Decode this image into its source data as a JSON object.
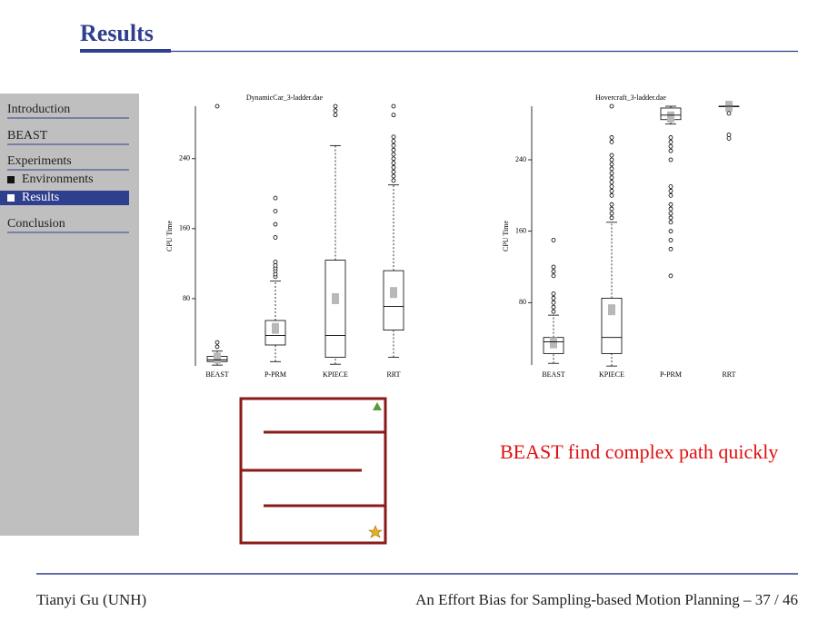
{
  "header": {
    "title": "Results"
  },
  "nav": {
    "items": [
      "Introduction",
      "BEAST",
      "Experiments",
      "Environments",
      "Results",
      "Conclusion"
    ]
  },
  "chart_data": [
    {
      "type": "box",
      "title": "DynamicCar_3-ladder.dae",
      "ylabel": "CPU Time",
      "categories": [
        "BEAST",
        "P-PRM",
        "KPIECE",
        "RRT"
      ],
      "ylim": [
        0,
        300
      ],
      "yticks": [
        80,
        160,
        240
      ],
      "boxes": [
        {
          "low": 4,
          "q1": 8,
          "median": 10,
          "q3": 14,
          "high": 20,
          "mean": 12,
          "outliers": [
            25,
            30,
            300
          ]
        },
        {
          "low": 8,
          "q1": 27,
          "median": 38,
          "q3": 55,
          "high": 100,
          "mean": 46,
          "outliers": [
            105,
            108,
            112,
            115,
            118,
            122,
            150,
            165,
            180,
            195
          ]
        },
        {
          "low": 5,
          "q1": 13,
          "median": 38,
          "q3": 124,
          "high": 255,
          "mean": 80,
          "outliers": [
            290,
            295,
            300
          ]
        },
        {
          "low": 13,
          "q1": 44,
          "median": 71,
          "q3": 112,
          "high": 210,
          "mean": 87,
          "outliers": [
            215,
            220,
            225,
            230,
            235,
            240,
            245,
            250,
            255,
            260,
            265,
            290,
            300
          ]
        }
      ]
    },
    {
      "type": "box",
      "title": "Hovercraft_3-ladder.dae",
      "ylabel": "CPU Time",
      "categories": [
        "BEAST",
        "KPIECE",
        "P-PRM",
        "RRT"
      ],
      "ylim": [
        0,
        300
      ],
      "yticks": [
        80,
        160,
        240
      ],
      "boxes": [
        {
          "low": 12,
          "q1": 23,
          "median": 36,
          "q3": 41,
          "high": 66,
          "mean": 35,
          "outliers": [
            70,
            75,
            80,
            85,
            90,
            110,
            115,
            120,
            150
          ]
        },
        {
          "low": 9,
          "q1": 23,
          "median": 41,
          "q3": 85,
          "high": 170,
          "mean": 72,
          "outliers": [
            175,
            180,
            185,
            190,
            200,
            205,
            210,
            215,
            220,
            225,
            230,
            235,
            240,
            245,
            260,
            265,
            300
          ]
        },
        {
          "low": 280,
          "q1": 285,
          "median": 290,
          "q3": 298,
          "high": 300,
          "mean": 288,
          "outliers": [
            110,
            140,
            150,
            160,
            170,
            175,
            180,
            185,
            190,
            200,
            205,
            210,
            240,
            250,
            255,
            260,
            265
          ]
        },
        {
          "low": 300,
          "q1": 300,
          "median": 300,
          "q3": 300,
          "high": 300,
          "mean": 300,
          "outliers": [
            264,
            268,
            292
          ]
        }
      ]
    }
  ],
  "caption": "BEAST find complex path quickly",
  "footer": {
    "author": "Tianyi Gu (UNH)",
    "title": "An Effort Bias for Sampling-based Motion Planning – 37 / 46"
  }
}
